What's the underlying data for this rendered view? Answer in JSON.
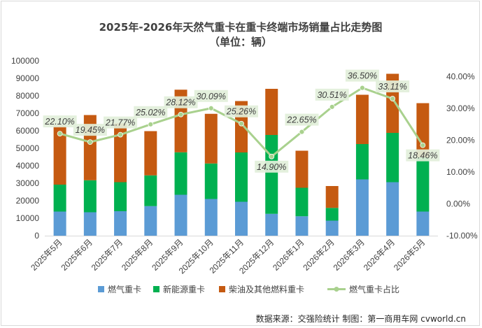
{
  "chart_data": {
    "type": "bar",
    "stacked": true,
    "title": "2025年-2026年天然气重卡在重卡终端市场销量占比走势图",
    "subtitle": "（单位：辆）",
    "categories": [
      "2025年5月",
      "2025年6月",
      "2025年7月",
      "2025年8月",
      "2025年9月",
      "2025年10月",
      "2025年11月",
      "2025年12月",
      "2026年1月",
      "2026年2月",
      "2026年3月",
      "2026年4月",
      "2026年5月"
    ],
    "series": [
      {
        "name": "燃气重卡",
        "kind": "bar",
        "axis": "left",
        "color": "#5b9bd5",
        "values": [
          13800,
          13400,
          14000,
          16900,
          23400,
          21000,
          19400,
          12500,
          11100,
          8600,
          32200,
          30600,
          13800
        ]
      },
      {
        "name": "新能源重卡",
        "kind": "bar",
        "axis": "left",
        "color": "#00b050",
        "values": [
          15400,
          18300,
          16600,
          17600,
          24300,
          20300,
          28200,
          45100,
          16300,
          7300,
          20200,
          28200,
          31000
        ]
      },
      {
        "name": "柴油及其他燃料重卡",
        "kind": "bar",
        "axis": "left",
        "color": "#c55a11",
        "values": [
          33800,
          37300,
          33700,
          25300,
          35800,
          28400,
          29400,
          26400,
          21200,
          12500,
          28200,
          33800,
          31000
        ]
      },
      {
        "name": "燃气重卡占比",
        "kind": "line",
        "axis": "right",
        "color": "#a9d18e",
        "values": [
          22.1,
          19.45,
          21.77,
          25.02,
          28.12,
          30.09,
          25.26,
          14.9,
          22.65,
          30.51,
          36.5,
          33.11,
          18.46
        ],
        "labels": [
          "22.10%",
          "19.45%",
          "21.77%",
          "25.02%",
          "28.12%",
          "30.09%",
          "25.26%",
          "14.90%",
          "22.65%",
          "30.51%",
          "36.50%",
          "33.11%",
          "18.46%"
        ]
      }
    ],
    "y_left": {
      "min": 0,
      "max": 100000,
      "step": 10000,
      "ticks": [
        "0",
        "10000",
        "20000",
        "30000",
        "40000",
        "50000",
        "60000",
        "70000",
        "80000",
        "90000",
        "100000"
      ]
    },
    "y_right": {
      "min": -10,
      "max": 45,
      "step": 10,
      "ticks": [
        "-10.00%",
        "0.00%",
        "10.00%",
        "20.00%",
        "30.00%",
        "40.00%"
      ]
    },
    "grid": false,
    "legend_position": "bottom"
  },
  "source_note": "数据来源：交强险统计  制图：第一商用车网 cvworld.cn"
}
